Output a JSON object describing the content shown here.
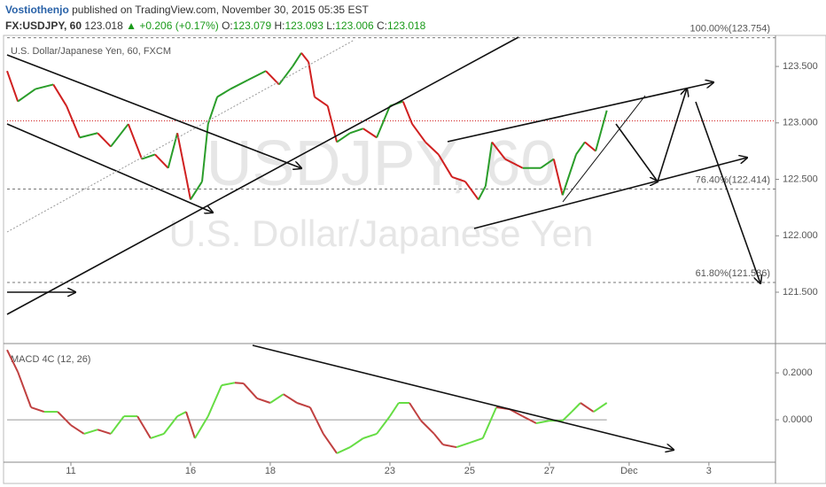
{
  "header": {
    "author": "Vostiothenjo",
    "published": "published on TradingView.com, November 30, 2015 05:35 EST",
    "symbol": "FX:USDJPY, 60",
    "last": "123.018",
    "change": "▲ +0.206 (+0.17%)",
    "ohlc": [
      {
        "label": "O:",
        "value": "123.079"
      },
      {
        "label": "H:",
        "value": "123.093"
      },
      {
        "label": "L:",
        "value": "123.006"
      },
      {
        "label": "C:",
        "value": "123.018"
      }
    ]
  },
  "chart_data": [
    {
      "type": "line",
      "title": "U.S. Dollar/Japanese Yen, 60, FXCM",
      "watermark": "USDJPY, 60",
      "watermark2": "U.S. Dollar/Japanese Yen",
      "up_color": "#2a9d2a",
      "down_color": "#d02020",
      "x": [
        0.4,
        0.67,
        1.11,
        1.56,
        1.89,
        2.22,
        2.67,
        3.0,
        3.44,
        3.78,
        4.11,
        4.44,
        4.67,
        4.89,
        5.0,
        5.29,
        5.44,
        5.67,
        6.0,
        6.44,
        6.89,
        7.22,
        7.56,
        7.78,
        7.96,
        8.11,
        8.44,
        8.67,
        9.0,
        9.33,
        9.67,
        10.0,
        10.33,
        10.56,
        10.89,
        11.22,
        11.56,
        11.89,
        12.22,
        12.4,
        12.56,
        12.89,
        13.33,
        13.78,
        14.11,
        14.33,
        14.67,
        14.89,
        15.16,
        15.44
      ],
      "values": [
        123.46,
        123.19,
        123.3,
        123.34,
        123.15,
        122.87,
        122.91,
        122.79,
        122.99,
        122.68,
        122.72,
        122.6,
        122.91,
        122.52,
        122.32,
        122.48,
        122.99,
        123.23,
        123.3,
        123.38,
        123.46,
        123.34,
        123.5,
        123.62,
        123.54,
        123.23,
        123.15,
        122.83,
        122.91,
        122.95,
        122.87,
        123.15,
        123.19,
        122.99,
        122.83,
        122.72,
        122.52,
        122.48,
        122.32,
        122.44,
        122.83,
        122.68,
        122.6,
        122.6,
        122.68,
        122.36,
        122.72,
        122.83,
        122.75,
        123.11
      ],
      "last_price": 123.018,
      "levels": [
        {
          "value": 123.754,
          "label": "100.00%(123.754)"
        },
        {
          "value": 122.414,
          "label": "76.40%(122.414)"
        },
        {
          "value": 121.586,
          "label": "61.80%(121.586)"
        }
      ],
      "xlim": [
        0.4,
        19.67
      ],
      "ylim": [
        121.045,
        123.775
      ],
      "yticks": [
        {
          "value": 121.5,
          "label": "121.500"
        },
        {
          "value": 122,
          "label": "122.000"
        },
        {
          "value": 122.5,
          "label": "122.500"
        },
        {
          "value": 123,
          "label": "123.000"
        },
        {
          "value": 123.5,
          "label": "123.500"
        }
      ]
    },
    {
      "type": "line",
      "title": "MACD 4C (12, 26)",
      "up_color": "#66dd44",
      "down_color": "#c04040",
      "x": [
        0.4,
        0.67,
        1.0,
        1.33,
        1.67,
        2.0,
        2.33,
        2.67,
        3.0,
        3.33,
        3.67,
        4.0,
        4.33,
        4.67,
        4.89,
        5.11,
        5.44,
        5.78,
        6.11,
        6.33,
        6.67,
        7.0,
        7.33,
        7.67,
        8.0,
        8.33,
        8.67,
        9.0,
        9.33,
        9.67,
        10.0,
        10.22,
        10.49,
        10.78,
        11.11,
        11.33,
        11.67,
        12.0,
        12.33,
        12.67,
        13.0,
        13.33,
        13.67,
        14.0,
        14.33,
        14.56,
        14.78,
        15.11,
        15.44
      ],
      "values": [
        0.298,
        0.204,
        0.053,
        0.034,
        0.034,
        -0.023,
        -0.06,
        -0.042,
        -0.06,
        0.015,
        0.015,
        -0.079,
        -0.06,
        0.015,
        0.034,
        -0.079,
        0.015,
        0.147,
        0.158,
        0.155,
        0.091,
        0.072,
        0.109,
        0.072,
        0.053,
        -0.06,
        -0.143,
        -0.117,
        -0.079,
        -0.06,
        0.015,
        0.072,
        0.072,
        -0.004,
        -0.06,
        -0.106,
        -0.117,
        -0.098,
        -0.079,
        0.053,
        0.045,
        0.015,
        -0.015,
        -0.004,
        -0.004,
        0.034,
        0.072,
        0.034,
        0.072
      ],
      "xlim": [
        0.4,
        19.67
      ],
      "ylim": [
        -0.181,
        0.325
      ],
      "yticks": [
        {
          "value": 0,
          "label": "0.0000"
        },
        {
          "value": 0.2,
          "label": "0.2000"
        }
      ],
      "xticks": [
        {
          "value": 2,
          "label": "11"
        },
        {
          "value": 5,
          "label": "16"
        },
        {
          "value": 7,
          "label": "18"
        },
        {
          "value": 10,
          "label": "23"
        },
        {
          "value": 12,
          "label": "25"
        },
        {
          "value": 14,
          "label": "27"
        },
        {
          "value": 16,
          "label": "Dec"
        },
        {
          "value": 18,
          "label": "3"
        }
      ]
    }
  ]
}
